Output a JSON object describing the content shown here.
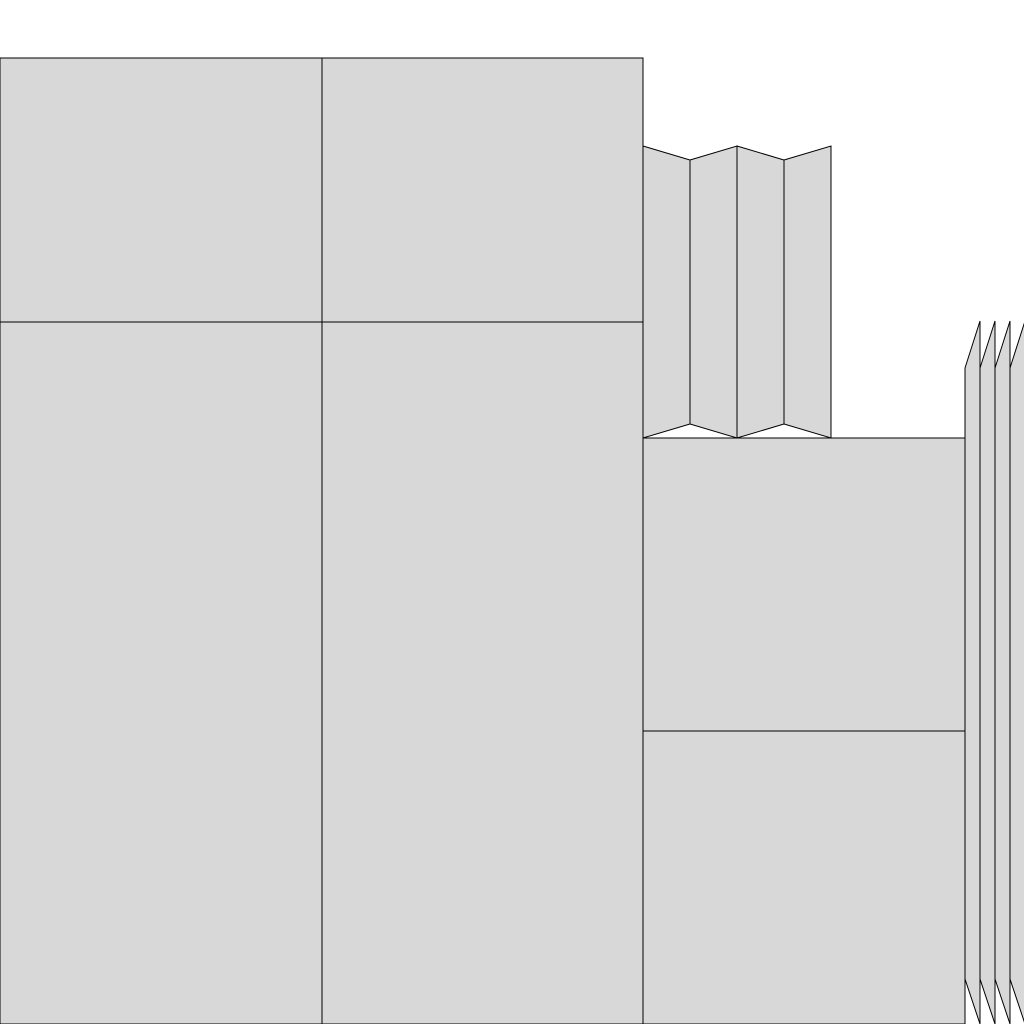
{
  "colors": {
    "panel_fill": "#d8d8d8",
    "panel_stroke": "#000000",
    "background": "#ffffff"
  }
}
